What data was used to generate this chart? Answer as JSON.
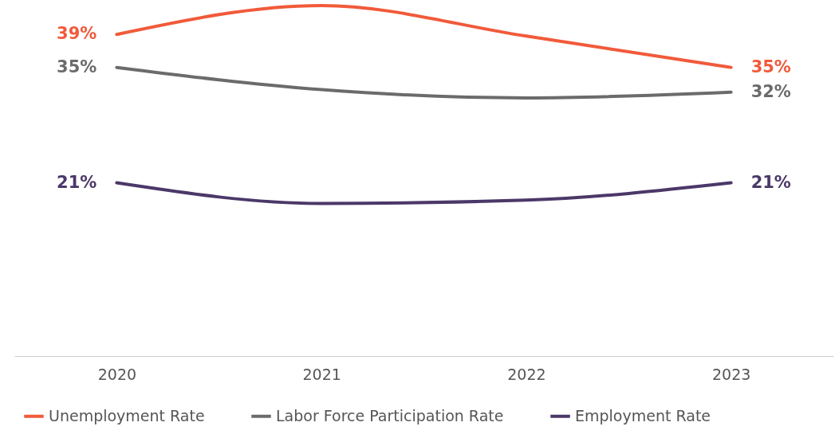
{
  "chart_data": {
    "type": "line",
    "categories": [
      "2020",
      "2021",
      "2022",
      "2023"
    ],
    "series": [
      {
        "name": "Unemployment Rate",
        "color": "#f15a3a",
        "values": [
          39,
          42.5,
          38.8,
          35
        ],
        "value_labels": [
          "39%",
          null,
          null,
          "35%"
        ]
      },
      {
        "name": "Labor Force Participation Rate",
        "color": "#6b6b6b",
        "values": [
          35,
          32.3,
          31.3,
          32
        ],
        "value_labels": [
          "35%",
          null,
          null,
          "32%"
        ]
      },
      {
        "name": "Employment Rate",
        "color": "#4b3868",
        "values": [
          21,
          18.5,
          18.9,
          21
        ],
        "value_labels": [
          "21%",
          null,
          null,
          "21%"
        ]
      }
    ],
    "legend": "bottom",
    "grid": false,
    "tick_labels": "x",
    "marker": "none",
    "line_style": "solid"
  }
}
